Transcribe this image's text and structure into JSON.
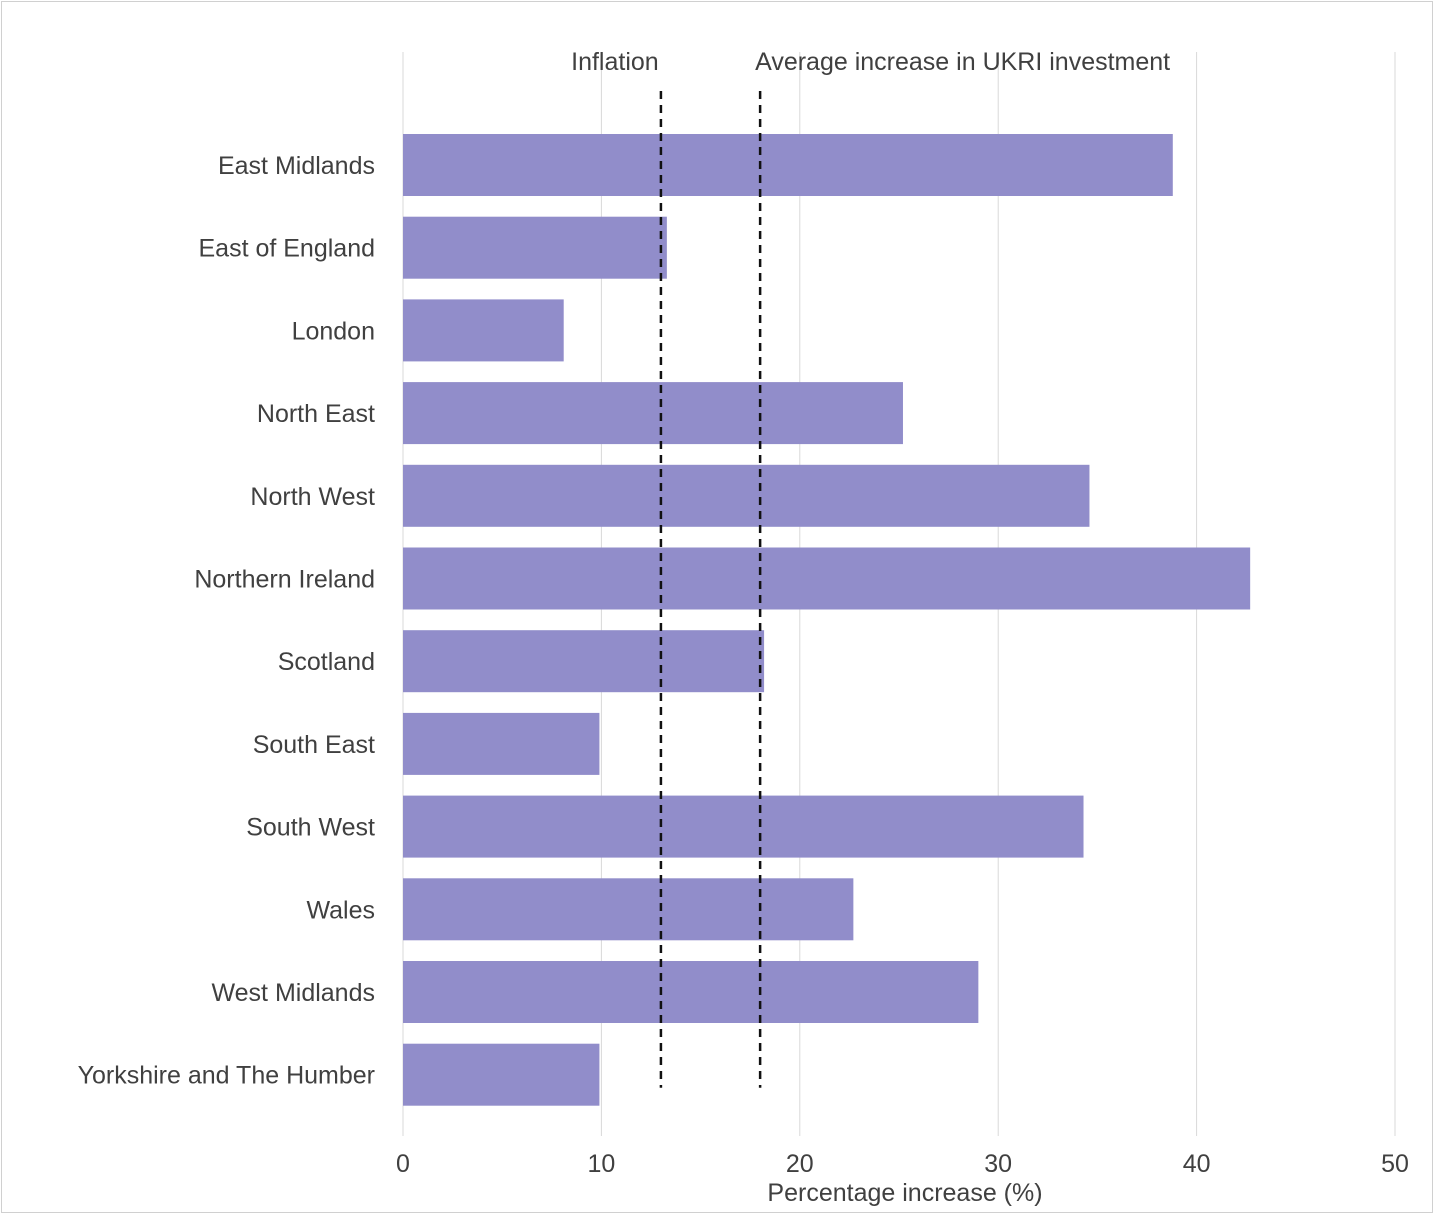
{
  "chart_data": {
    "type": "bar",
    "orientation": "horizontal",
    "categories": [
      "East Midlands",
      "East of England",
      "London",
      "North East",
      "North West",
      "Northern Ireland",
      "Scotland",
      "South East",
      "South West",
      "Wales",
      "West Midlands",
      "Yorkshire and The Humber"
    ],
    "values": [
      38.8,
      13.3,
      8.1,
      25.2,
      34.6,
      42.7,
      18.2,
      9.9,
      34.3,
      22.7,
      29.0,
      9.9
    ],
    "bar_color": "#918dca",
    "xlabel": "Percentage increase (%)",
    "ylabel": "",
    "xlim": [
      0,
      50
    ],
    "xticks": [
      0,
      10,
      20,
      30,
      40,
      50
    ],
    "grid": "vertical",
    "reference_lines": [
      {
        "label": "Inflation",
        "value": 13
      },
      {
        "label": "Average increase in UKRI investment",
        "value": 18
      }
    ]
  }
}
